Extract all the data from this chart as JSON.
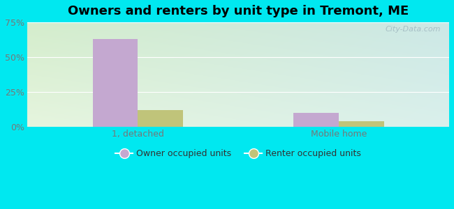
{
  "title": "Owners and renters by unit type in Tremont, ME",
  "categories": [
    "1, detached",
    "Mobile home"
  ],
  "owner_values": [
    63,
    10
  ],
  "renter_values": [
    12,
    4
  ],
  "owner_color": "#c4a8d0",
  "renter_color": "#c0c47a",
  "ylim": [
    0,
    75
  ],
  "yticks": [
    0,
    25,
    50,
    75
  ],
  "yticklabels": [
    "0%",
    "25%",
    "50%",
    "75%"
  ],
  "outer_bg": "#00e8f0",
  "bg_color_topleft": "#d6edcf",
  "bg_color_topright": "#cce8e8",
  "bg_color_bottomleft": "#e8f5e0",
  "bg_color_bottomright": "#daf0ee",
  "watermark": "City-Data.com",
  "legend_labels": [
    "Owner occupied units",
    "Renter occupied units"
  ],
  "title_fontsize": 13,
  "tick_fontsize": 9,
  "legend_fontsize": 9,
  "grid_color": "#ffffff",
  "tick_color": "#777777"
}
